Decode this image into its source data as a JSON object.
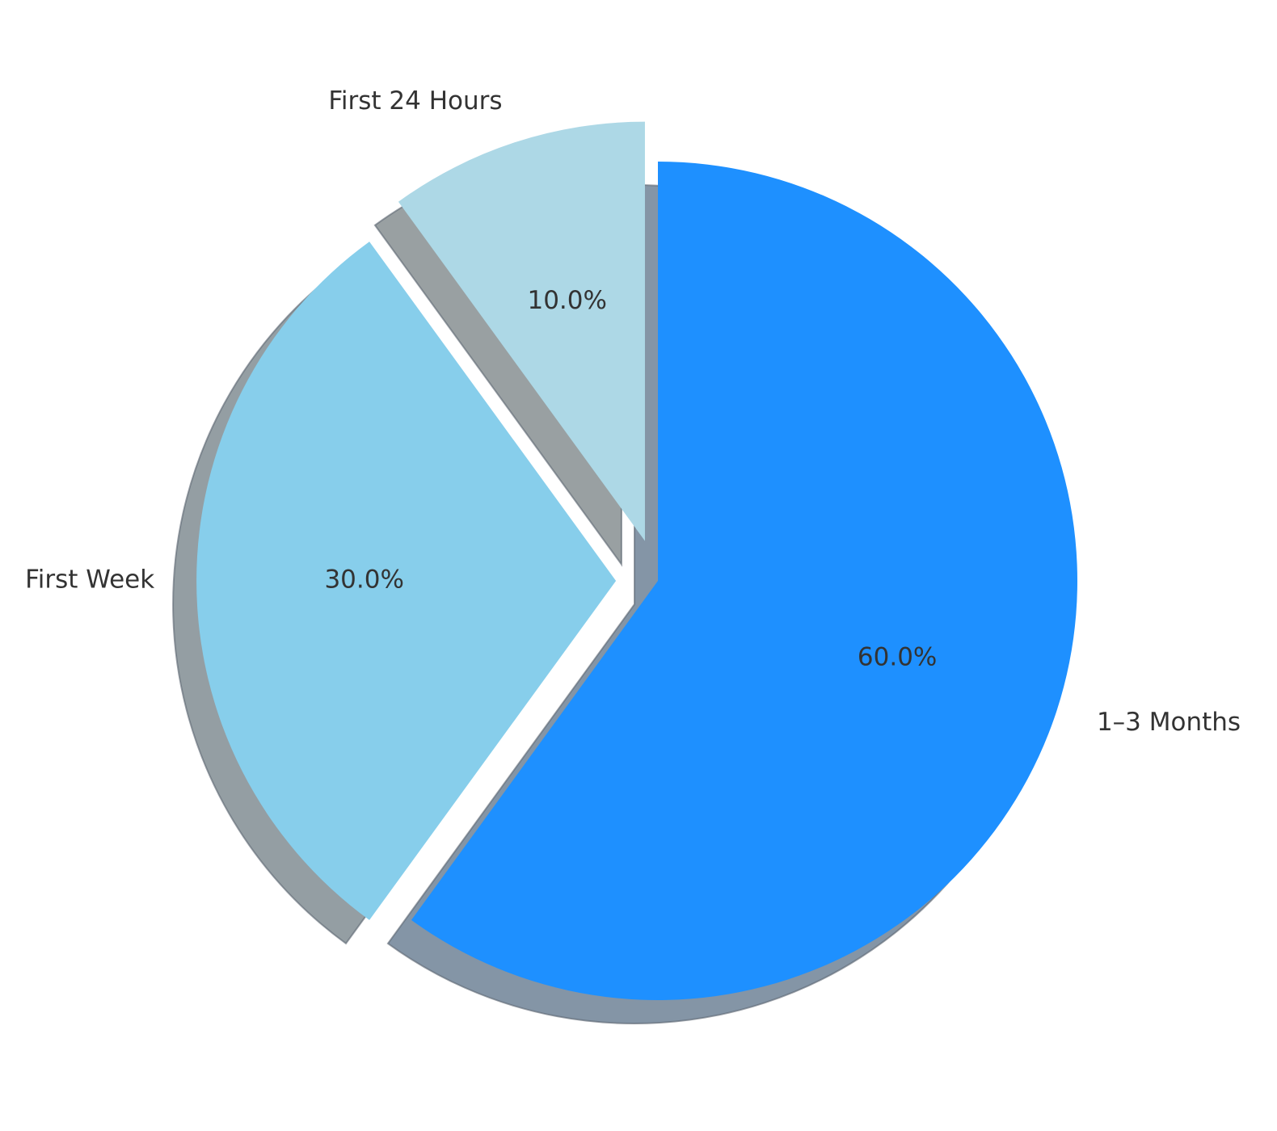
{
  "chart_data": {
    "type": "pie",
    "categories": [
      "First 24 Hours",
      "First Week",
      "1–3 Months"
    ],
    "values": [
      10,
      30,
      60
    ],
    "value_labels": [
      "10.0%",
      "30.0%",
      "60.0%"
    ],
    "colors": [
      "#add8e6",
      "#87ceeb",
      "#1e90ff"
    ],
    "explode": [
      0.1,
      0.1,
      0
    ],
    "start_angle": 90,
    "shadow": true
  }
}
